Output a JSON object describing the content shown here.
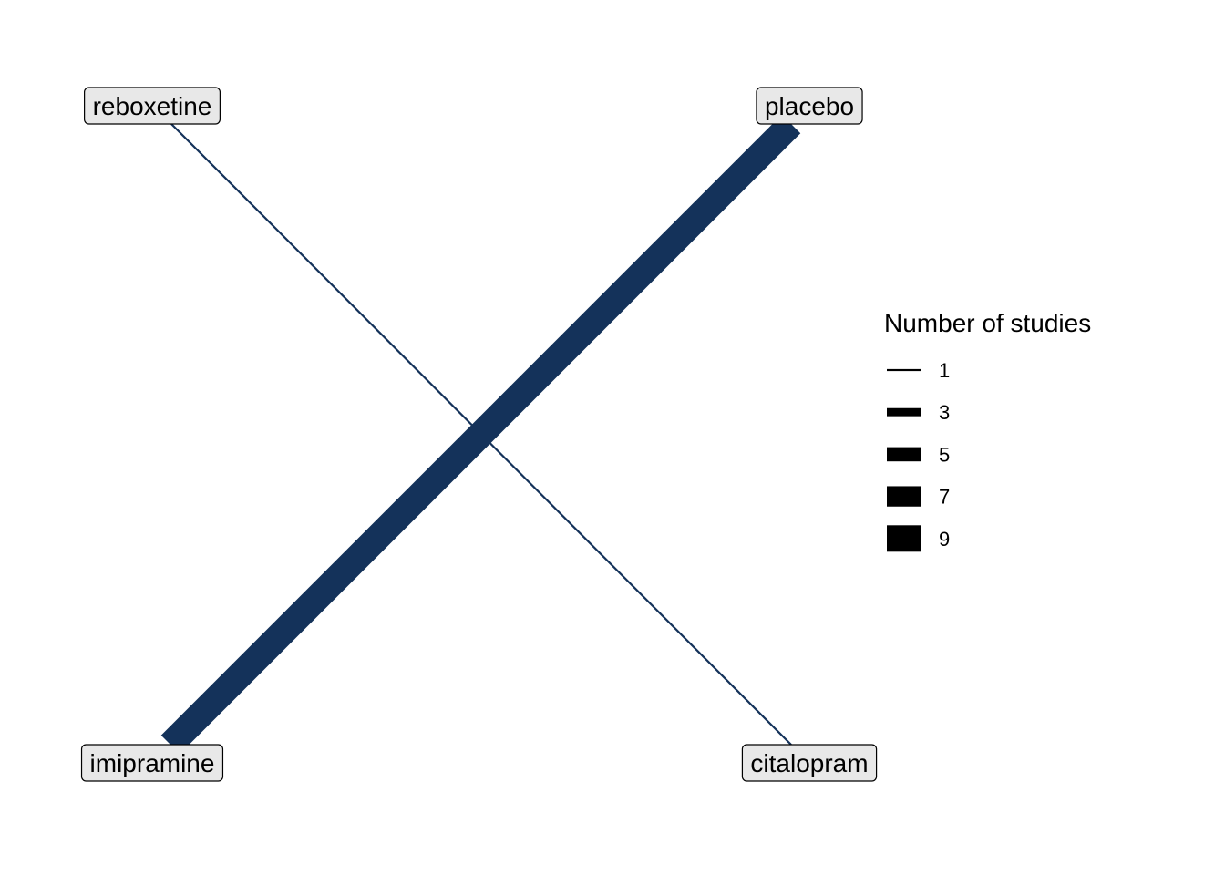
{
  "colors": {
    "edge": "#14325a",
    "node_fill": "#e8e8e8",
    "node_stroke": "#000000",
    "legend_swatch": "#000000"
  },
  "nodes": [
    {
      "id": "reboxetine",
      "label": "reboxetine"
    },
    {
      "id": "placebo",
      "label": "placebo"
    },
    {
      "id": "imipramine",
      "label": "imipramine"
    },
    {
      "id": "citalopram",
      "label": "citalopram"
    }
  ],
  "edges": [
    {
      "from": "reboxetine",
      "to": "citalopram",
      "studies": 1
    },
    {
      "from": "imipramine",
      "to": "placebo",
      "studies": 9
    }
  ],
  "legend": {
    "title": "Number of studies",
    "items": [
      {
        "label": "1",
        "value": 1
      },
      {
        "label": "3",
        "value": 3
      },
      {
        "label": "5",
        "value": 5
      },
      {
        "label": "7",
        "value": 7
      },
      {
        "label": "9",
        "value": 9
      }
    ]
  }
}
